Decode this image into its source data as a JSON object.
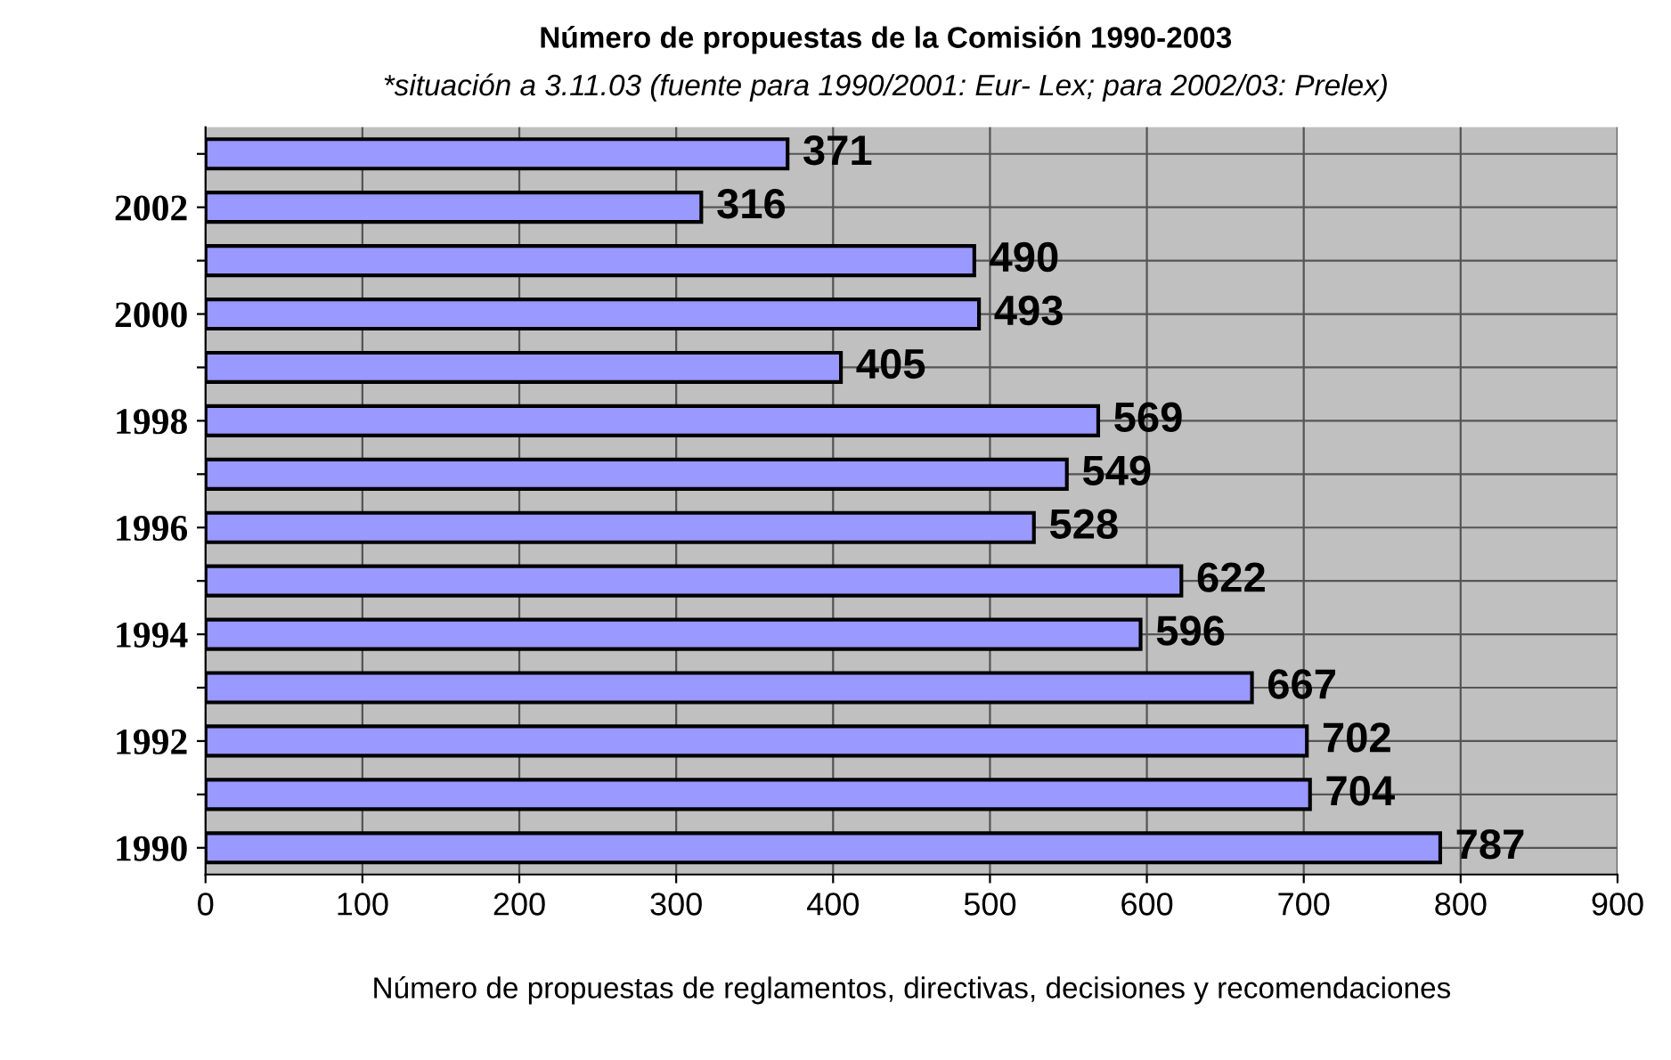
{
  "chart_data": {
    "type": "bar",
    "orientation": "horizontal",
    "title": "Número de propuestas de la Comisión 1990-2003",
    "subtitle": "*situación a 3.11.03 (fuente para 1990/2001: Eur- Lex; para 2002/03: Prelex)",
    "xlabel": "Número de propuestas de reglamentos, directivas, decisiones y recomendaciones",
    "categories": [
      null,
      "2002",
      null,
      "2000",
      null,
      "1998",
      null,
      "1996",
      null,
      "1994",
      null,
      "1992",
      null,
      "1990"
    ],
    "values": [
      371,
      316,
      490,
      493,
      405,
      569,
      549,
      528,
      622,
      596,
      667,
      702,
      704,
      787
    ],
    "color": "#9999ff",
    "xlim": [
      0,
      900
    ],
    "xticks": [
      0,
      100,
      200,
      300,
      400,
      500,
      600,
      700,
      800,
      900
    ],
    "grid": true,
    "data_labels": true
  }
}
